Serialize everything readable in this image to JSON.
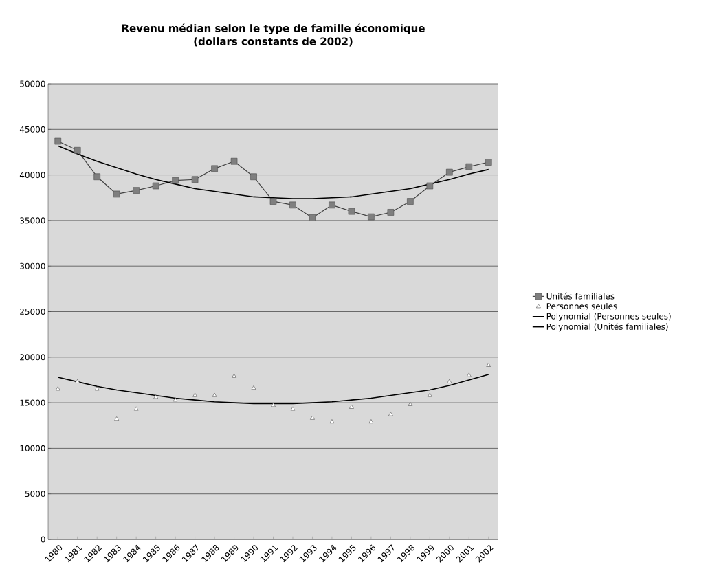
{
  "chart_data": {
    "type": "line",
    "title": "Revenu médian selon le type de famille économique",
    "subtitle": "(dollars constants de 2002)",
    "categories": [
      "1980",
      "1981",
      "1982",
      "1983",
      "1984",
      "1985",
      "1986",
      "1987",
      "1988",
      "1989",
      "1990",
      "1991",
      "1992",
      "1993",
      "1994",
      "1995",
      "1996",
      "1997",
      "1998",
      "1999",
      "2000",
      "2001",
      "2002"
    ],
    "ylim": [
      0,
      50000
    ],
    "yticks": [
      0,
      5000,
      10000,
      15000,
      20000,
      25000,
      30000,
      35000,
      40000,
      45000,
      50000
    ],
    "grid": "y",
    "legend": "right",
    "series": [
      {
        "name": "Unités familiales",
        "color": "#7f7f7f",
        "marker": "square",
        "values": [
          43700,
          42700,
          39800,
          37900,
          38300,
          38800,
          39400,
          39500,
          40700,
          41500,
          39800,
          37100,
          36700,
          35300,
          36700,
          36000,
          35400,
          35900,
          37100,
          38800,
          40300,
          40900,
          41400
        ]
      },
      {
        "name": "Personnes seules",
        "type": "scatter",
        "color": "#ffffff",
        "marker": "triangle",
        "values": [
          16500,
          17300,
          16500,
          13200,
          14300,
          15600,
          15300,
          15800,
          15800,
          17900,
          16600,
          14700,
          14300,
          13300,
          12900,
          14500,
          12900,
          13700,
          14800,
          15800,
          17300,
          18000,
          19100
        ]
      },
      {
        "name": "Polynomial (Personnes seules)",
        "color": "#000000",
        "marker": "none",
        "values": [
          17800,
          17300,
          16800,
          16400,
          16100,
          15800,
          15500,
          15300,
          15100,
          15000,
          14900,
          14900,
          14900,
          15000,
          15100,
          15300,
          15500,
          15800,
          16100,
          16400,
          16900,
          17500,
          18100
        ]
      },
      {
        "name": "Polynomial (Unités familiales)",
        "color": "#000000",
        "marker": "none",
        "values": [
          43200,
          42300,
          41500,
          40800,
          40100,
          39500,
          39000,
          38500,
          38200,
          37900,
          37600,
          37500,
          37400,
          37400,
          37500,
          37600,
          37900,
          38200,
          38500,
          39000,
          39500,
          40100,
          40600
        ]
      }
    ]
  }
}
